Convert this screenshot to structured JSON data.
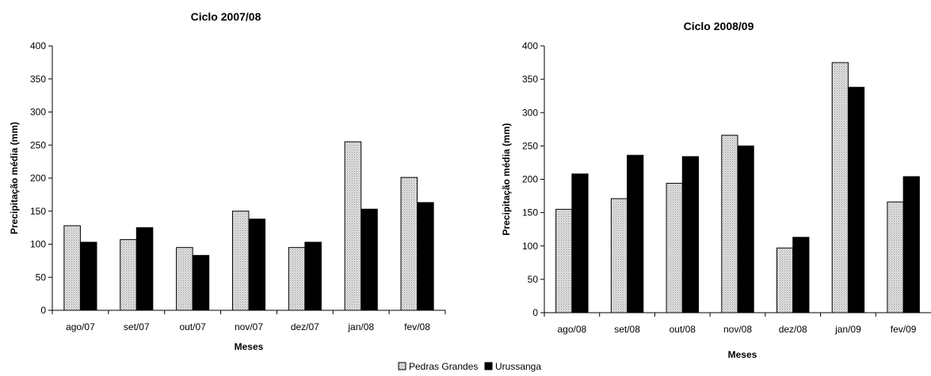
{
  "legend": [
    {
      "name": "Pedras Grandes",
      "color": "#d4d4d4"
    },
    {
      "name": "Urussanga",
      "color": "#000000"
    }
  ],
  "chart_data": [
    {
      "type": "bar",
      "title": "Ciclo 2007/08",
      "xlabel": "Meses",
      "ylabel": "Precipitação média (mm)",
      "ylim": [
        0,
        400
      ],
      "yticks": [
        0,
        50,
        100,
        150,
        200,
        250,
        300,
        350,
        400
      ],
      "categories": [
        "ago/07",
        "set/07",
        "out/07",
        "nov/07",
        "dez/07",
        "jan/08",
        "fev/08"
      ],
      "series": [
        {
          "name": "Pedras Grandes",
          "values": [
            128,
            107,
            95,
            150,
            95,
            255,
            201
          ]
        },
        {
          "name": "Urussanga",
          "values": [
            103,
            125,
            83,
            138,
            103,
            153,
            163
          ]
        }
      ]
    },
    {
      "type": "bar",
      "title": "Ciclo 2008/09",
      "xlabel": "Meses",
      "ylabel": "Precipitação média (mm)",
      "ylim": [
        0,
        400
      ],
      "yticks": [
        0,
        50,
        100,
        150,
        200,
        250,
        300,
        350,
        400
      ],
      "categories": [
        "ago/08",
        "set/08",
        "out/08",
        "nov/08",
        "dez/08",
        "jan/09",
        "fev/09"
      ],
      "series": [
        {
          "name": "Pedras Grandes",
          "values": [
            155,
            171,
            194,
            266,
            97,
            375,
            166
          ]
        },
        {
          "name": "Urussanga",
          "values": [
            208,
            236,
            234,
            250,
            113,
            338,
            204
          ]
        }
      ]
    }
  ]
}
